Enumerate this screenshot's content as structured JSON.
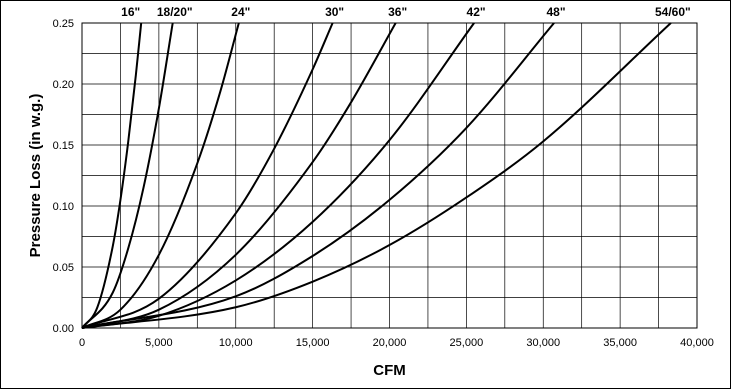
{
  "chart_data": {
    "type": "line",
    "xlabel": "CFM",
    "ylabel": "Pressure Loss (in w.g.)",
    "xlim": [
      0,
      40000
    ],
    "ylim": [
      0,
      0.25
    ],
    "x_tick_labels": [
      "0",
      "5,000",
      "10,000",
      "15,000",
      "20,000",
      "25,000",
      "30,000",
      "35,000",
      "40,000"
    ],
    "y_tick_labels": [
      "0.00",
      "0.05",
      "0.10",
      "0.15",
      "0.20",
      "0.25"
    ],
    "x_ticks": [
      0,
      5000,
      10000,
      15000,
      20000,
      25000,
      30000,
      35000,
      40000
    ],
    "y_ticks": [
      0,
      0.05,
      0.1,
      0.15,
      0.2,
      0.25
    ],
    "x_grid_step": 2500,
    "y_grid_step": 0.025,
    "grid": true,
    "legend": "curve labels along top edge",
    "series": [
      {
        "name": "16\"",
        "x": [
          0,
          1000,
          2000,
          2500,
          3000,
          3500,
          3850
        ],
        "y": [
          0,
          0.017,
          0.067,
          0.105,
          0.152,
          0.207,
          0.25
        ]
      },
      {
        "name": "18/20\"",
        "x": [
          0,
          2000,
          3000,
          4000,
          5000,
          5900
        ],
        "y": [
          0,
          0.029,
          0.065,
          0.115,
          0.18,
          0.25
        ]
      },
      {
        "name": "24\"",
        "x": [
          0,
          2500,
          5000,
          7500,
          9000,
          10200
        ],
        "y": [
          0,
          0.015,
          0.06,
          0.135,
          0.194,
          0.25
        ]
      },
      {
        "name": "30\"",
        "x": [
          0,
          5000,
          10000,
          12500,
          15000,
          16300
        ],
        "y": [
          0,
          0.024,
          0.094,
          0.147,
          0.212,
          0.25
        ]
      },
      {
        "name": "36\"",
        "x": [
          0,
          5000,
          10000,
          15000,
          17500,
          20400
        ],
        "y": [
          0,
          0.015,
          0.06,
          0.136,
          0.185,
          0.25
        ]
      },
      {
        "name": "42\"",
        "x": [
          0,
          5000,
          10000,
          15000,
          20000,
          25500
        ],
        "y": [
          0,
          0.01,
          0.039,
          0.087,
          0.154,
          0.25
        ]
      },
      {
        "name": "48\"",
        "x": [
          0,
          10000,
          15000,
          20000,
          25000,
          30700
        ],
        "y": [
          0,
          0.026,
          0.059,
          0.105,
          0.164,
          0.25
        ]
      },
      {
        "name": "54/60\"",
        "x": [
          0,
          10000,
          15000,
          20000,
          25000,
          30000,
          38300
        ],
        "y": [
          0,
          0.017,
          0.038,
          0.068,
          0.107,
          0.153,
          0.25
        ]
      }
    ]
  }
}
